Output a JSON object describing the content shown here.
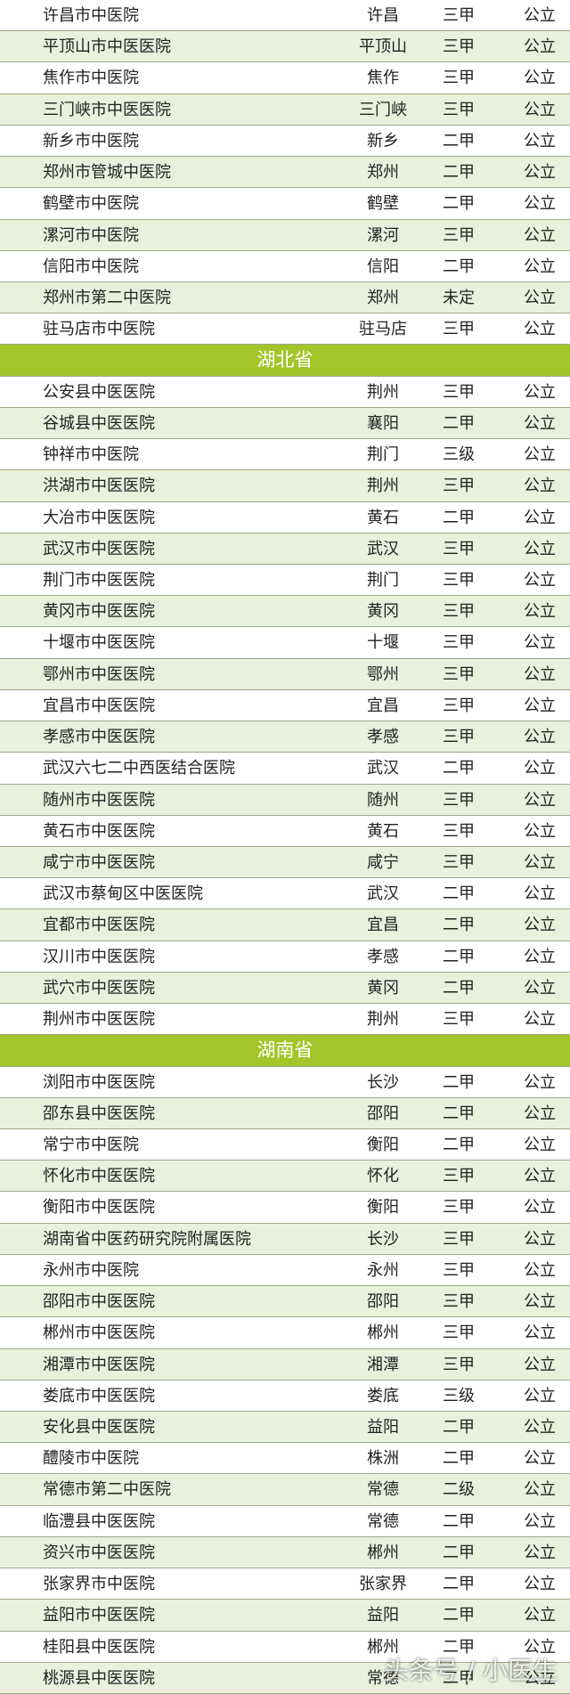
{
  "sections": [
    {
      "rows": [
        [
          "许昌市中医院",
          "许昌",
          "三甲",
          "公立"
        ],
        [
          "平顶山市中医医院",
          "平顶山",
          "三甲",
          "公立"
        ],
        [
          "焦作市中医院",
          "焦作",
          "三甲",
          "公立"
        ],
        [
          "三门峡市中医医院",
          "三门峡",
          "三甲",
          "公立"
        ],
        [
          "新乡市中医院",
          "新乡",
          "二甲",
          "公立"
        ],
        [
          "郑州市管城中医院",
          "郑州",
          "二甲",
          "公立"
        ],
        [
          "鹤壁市中医院",
          "鹤壁",
          "二甲",
          "公立"
        ],
        [
          "漯河市中医院",
          "漯河",
          "三甲",
          "公立"
        ],
        [
          "信阳市中医院",
          "信阳",
          "二甲",
          "公立"
        ],
        [
          "郑州市第二中医院",
          "郑州",
          "未定",
          "公立"
        ],
        [
          "驻马店市中医院",
          "驻马店",
          "三甲",
          "公立"
        ]
      ]
    },
    {
      "header": "湖北省",
      "rows": [
        [
          "公安县中医医院",
          "荆州",
          "三甲",
          "公立"
        ],
        [
          "谷城县中医医院",
          "襄阳",
          "二甲",
          "公立"
        ],
        [
          "钟祥市中医院",
          "荆门",
          "三级",
          "公立"
        ],
        [
          "洪湖市中医医院",
          "荆州",
          "三甲",
          "公立"
        ],
        [
          "大冶市中医医院",
          "黄石",
          "二甲",
          "公立"
        ],
        [
          "武汉市中医医院",
          "武汉",
          "三甲",
          "公立"
        ],
        [
          "荆门市中医医院",
          "荆门",
          "三甲",
          "公立"
        ],
        [
          "黄冈市中医医院",
          "黄冈",
          "三甲",
          "公立"
        ],
        [
          "十堰市中医医院",
          "十堰",
          "三甲",
          "公立"
        ],
        [
          "鄂州市中医医院",
          "鄂州",
          "三甲",
          "公立"
        ],
        [
          "宜昌市中医医院",
          "宜昌",
          "三甲",
          "公立"
        ],
        [
          "孝感市中医医院",
          "孝感",
          "三甲",
          "公立"
        ],
        [
          "武汉六七二中西医结合医院",
          "武汉",
          "二甲",
          "公立"
        ],
        [
          "随州市中医医院",
          "随州",
          "三甲",
          "公立"
        ],
        [
          "黄石市中医医院",
          "黄石",
          "三甲",
          "公立"
        ],
        [
          "咸宁市中医医院",
          "咸宁",
          "三甲",
          "公立"
        ],
        [
          "武汉市蔡甸区中医医院",
          "武汉",
          "二甲",
          "公立"
        ],
        [
          "宜都市中医医院",
          "宜昌",
          "二甲",
          "公立"
        ],
        [
          "汉川市中医医院",
          "孝感",
          "二甲",
          "公立"
        ],
        [
          "武穴市中医医院",
          "黄冈",
          "二甲",
          "公立"
        ],
        [
          "荆州市中医医院",
          "荆州",
          "三甲",
          "公立"
        ]
      ]
    },
    {
      "header": "湖南省",
      "rows": [
        [
          "浏阳市中医医院",
          "长沙",
          "二甲",
          "公立"
        ],
        [
          "邵东县中医医院",
          "邵阳",
          "二甲",
          "公立"
        ],
        [
          "常宁市中医院",
          "衡阳",
          "二甲",
          "公立"
        ],
        [
          "怀化市中医医院",
          "怀化",
          "三甲",
          "公立"
        ],
        [
          "衡阳市中医医院",
          "衡阳",
          "三甲",
          "公立"
        ],
        [
          "湖南省中医药研究院附属医院",
          "长沙",
          "三甲",
          "公立"
        ],
        [
          "永州市中医院",
          "永州",
          "三甲",
          "公立"
        ],
        [
          "邵阳市中医医院",
          "邵阳",
          "三甲",
          "公立"
        ],
        [
          "郴州市中医医院",
          "郴州",
          "三甲",
          "公立"
        ],
        [
          "湘潭市中医医院",
          "湘潭",
          "三甲",
          "公立"
        ],
        [
          "娄底市中医医院",
          "娄底",
          "三级",
          "公立"
        ],
        [
          "安化县中医医院",
          "益阳",
          "二甲",
          "公立"
        ],
        [
          "醴陵市中医院",
          "株洲",
          "二甲",
          "公立"
        ],
        [
          "常德市第二中医院",
          "常德",
          "二级",
          "公立"
        ],
        [
          "临澧县中医医院",
          "常德",
          "二甲",
          "公立"
        ],
        [
          "资兴市中医医院",
          "郴州",
          "二甲",
          "公立"
        ],
        [
          "张家界市中医院",
          "张家界",
          "二甲",
          "公立"
        ],
        [
          "益阳市中医医院",
          "益阳",
          "二甲",
          "公立"
        ],
        [
          "桂阳县中医医院",
          "郴州",
          "二甲",
          "公立"
        ],
        [
          "桃源县中医医院",
          "常德",
          "二甲",
          "公立"
        ]
      ]
    }
  ],
  "watermark": "头条号 / 小医生"
}
